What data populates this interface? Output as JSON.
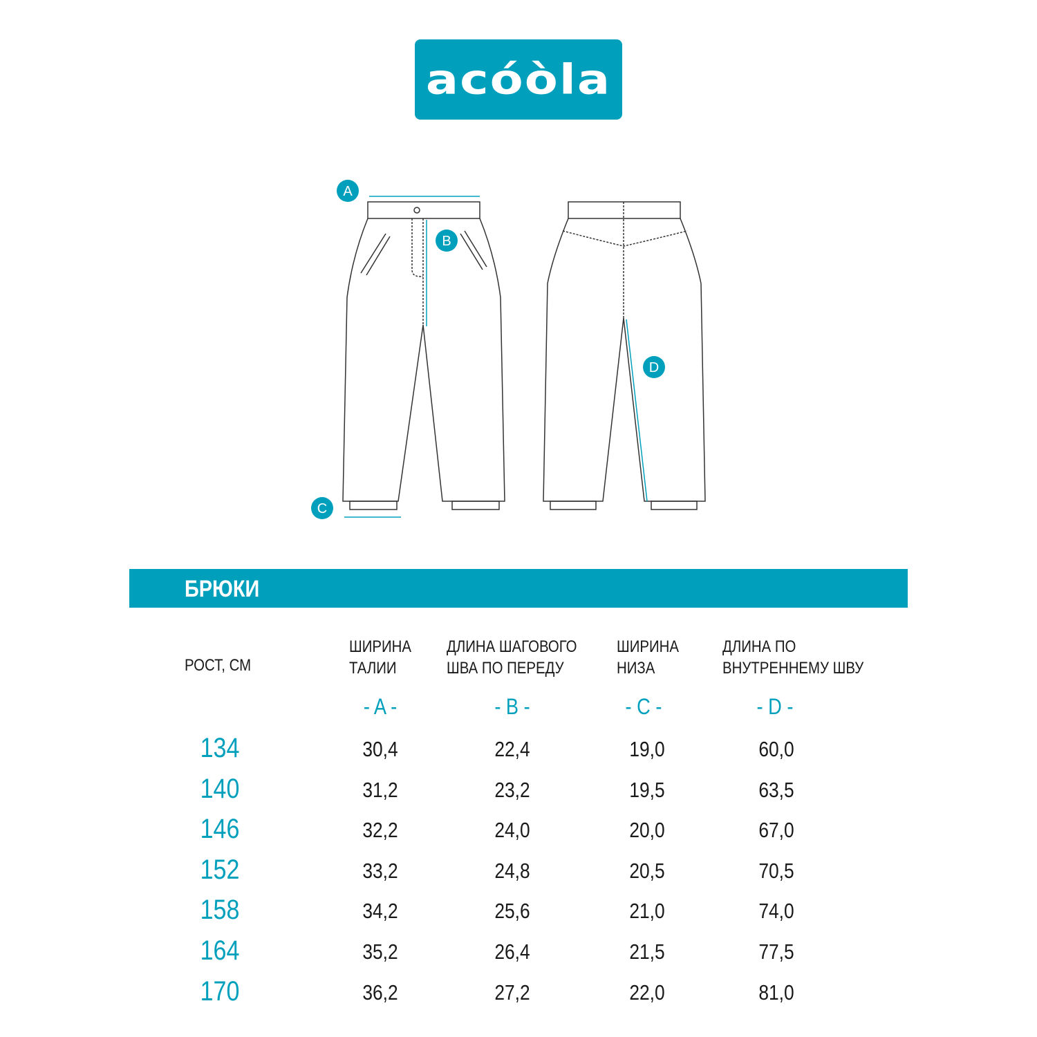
{
  "brand": {
    "logo_text": "acóòla",
    "color": "#00a0bd"
  },
  "diagram": {
    "markers": [
      "A",
      "B",
      "C",
      "D"
    ]
  },
  "section_title": "БРЮКИ",
  "table": {
    "columns": [
      {
        "header": "РОСТ, СМ",
        "letter": ""
      },
      {
        "header_lines": [
          "ШИРИНА",
          "ТАЛИИ"
        ],
        "letter": "- A -"
      },
      {
        "header_lines": [
          "ДЛИНА ШАГОВОГО",
          "ШВА ПО ПЕРЕДУ"
        ],
        "letter": "- B -"
      },
      {
        "header_lines": [
          "ШИРИНА",
          "НИЗА"
        ],
        "letter": "- C -"
      },
      {
        "header_lines": [
          "ДЛИНА ПО",
          "ВНУТРЕННЕМУ ШВУ"
        ],
        "letter": "- D -"
      }
    ],
    "rows": [
      [
        "134",
        "30,4",
        "22,4",
        "19,0",
        "60,0"
      ],
      [
        "140",
        "31,2",
        "23,2",
        "19,5",
        "63,5"
      ],
      [
        "146",
        "32,2",
        "24,0",
        "20,0",
        "67,0"
      ],
      [
        "152",
        "33,2",
        "24,8",
        "20,5",
        "70,5"
      ],
      [
        "158",
        "34,2",
        "25,6",
        "21,0",
        "74,0"
      ],
      [
        "164",
        "35,2",
        "26,4",
        "21,5",
        "77,5"
      ],
      [
        "170",
        "36,2",
        "27,2",
        "22,0",
        "81,0"
      ]
    ]
  }
}
